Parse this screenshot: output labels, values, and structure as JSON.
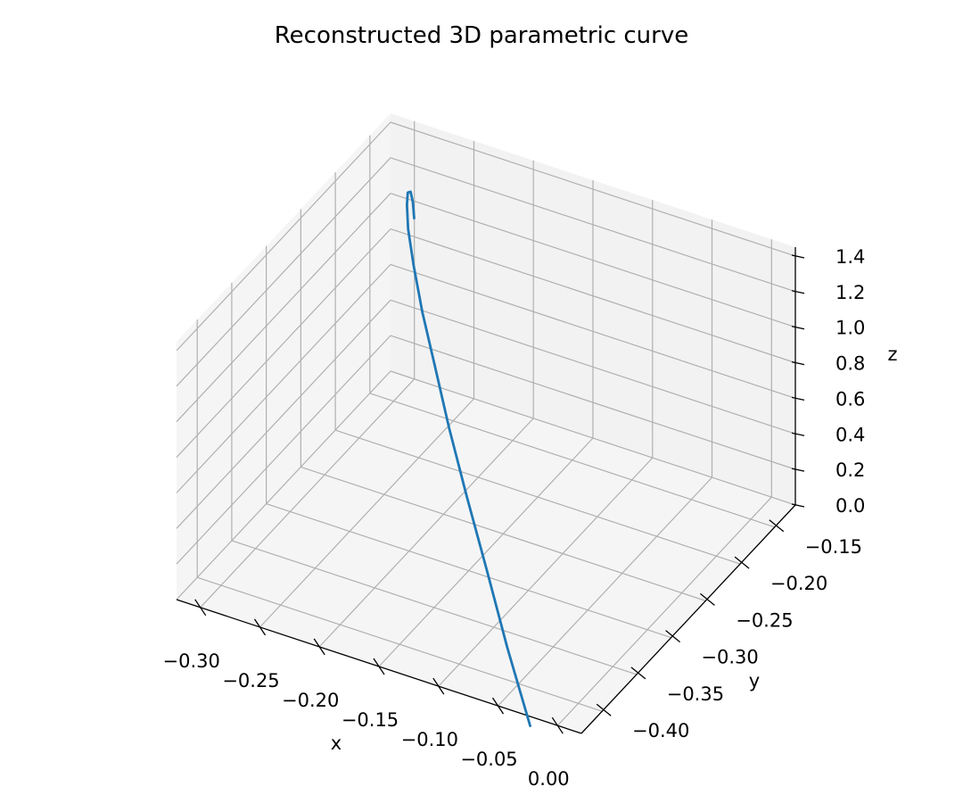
{
  "chart_data": {
    "type": "line",
    "projection": "3d",
    "title": "Reconstructed 3D parametric curve",
    "xlabel": "x",
    "ylabel": "y",
    "zlabel": "z",
    "xlim": [
      -0.32,
      0.02
    ],
    "ylim": [
      -0.43,
      -0.12
    ],
    "zlim": [
      0.0,
      1.45
    ],
    "x_ticks": [
      "−0.30",
      "−0.25",
      "−0.20",
      "−0.15",
      "−0.10",
      "−0.05",
      "0.00"
    ],
    "y_ticks": [
      "−0.40",
      "−0.35",
      "−0.30",
      "−0.25",
      "−0.20",
      "−0.15"
    ],
    "z_ticks": [
      "0.0",
      "0.2",
      "0.4",
      "0.6",
      "0.8",
      "1.0",
      "1.2",
      "1.4"
    ],
    "grid": true,
    "colors": {
      "line": "#1f77b4",
      "pane_back": "#f2f2f2",
      "pane_side": "#ebebeb",
      "pane_floor": "#f5f5f5",
      "grid": "#b0b0b0",
      "axis": "#000000"
    },
    "series": [
      {
        "x": [
          -0.292,
          -0.292,
          -0.291,
          -0.287,
          -0.279,
          -0.267,
          -0.249,
          -0.226,
          -0.198,
          -0.167,
          -0.132,
          -0.094,
          -0.054,
          -0.012
        ],
        "y": [
          -0.134,
          -0.136,
          -0.141,
          -0.152,
          -0.167,
          -0.186,
          -0.209,
          -0.236,
          -0.266,
          -0.299,
          -0.334,
          -0.371,
          -0.41,
          -0.449
        ],
        "z": [
          0.98,
          1.08,
          1.16,
          1.21,
          1.22,
          1.19,
          1.12,
          1.02,
          0.9,
          0.76,
          0.6,
          0.43,
          0.24,
          0.05
        ]
      }
    ]
  }
}
